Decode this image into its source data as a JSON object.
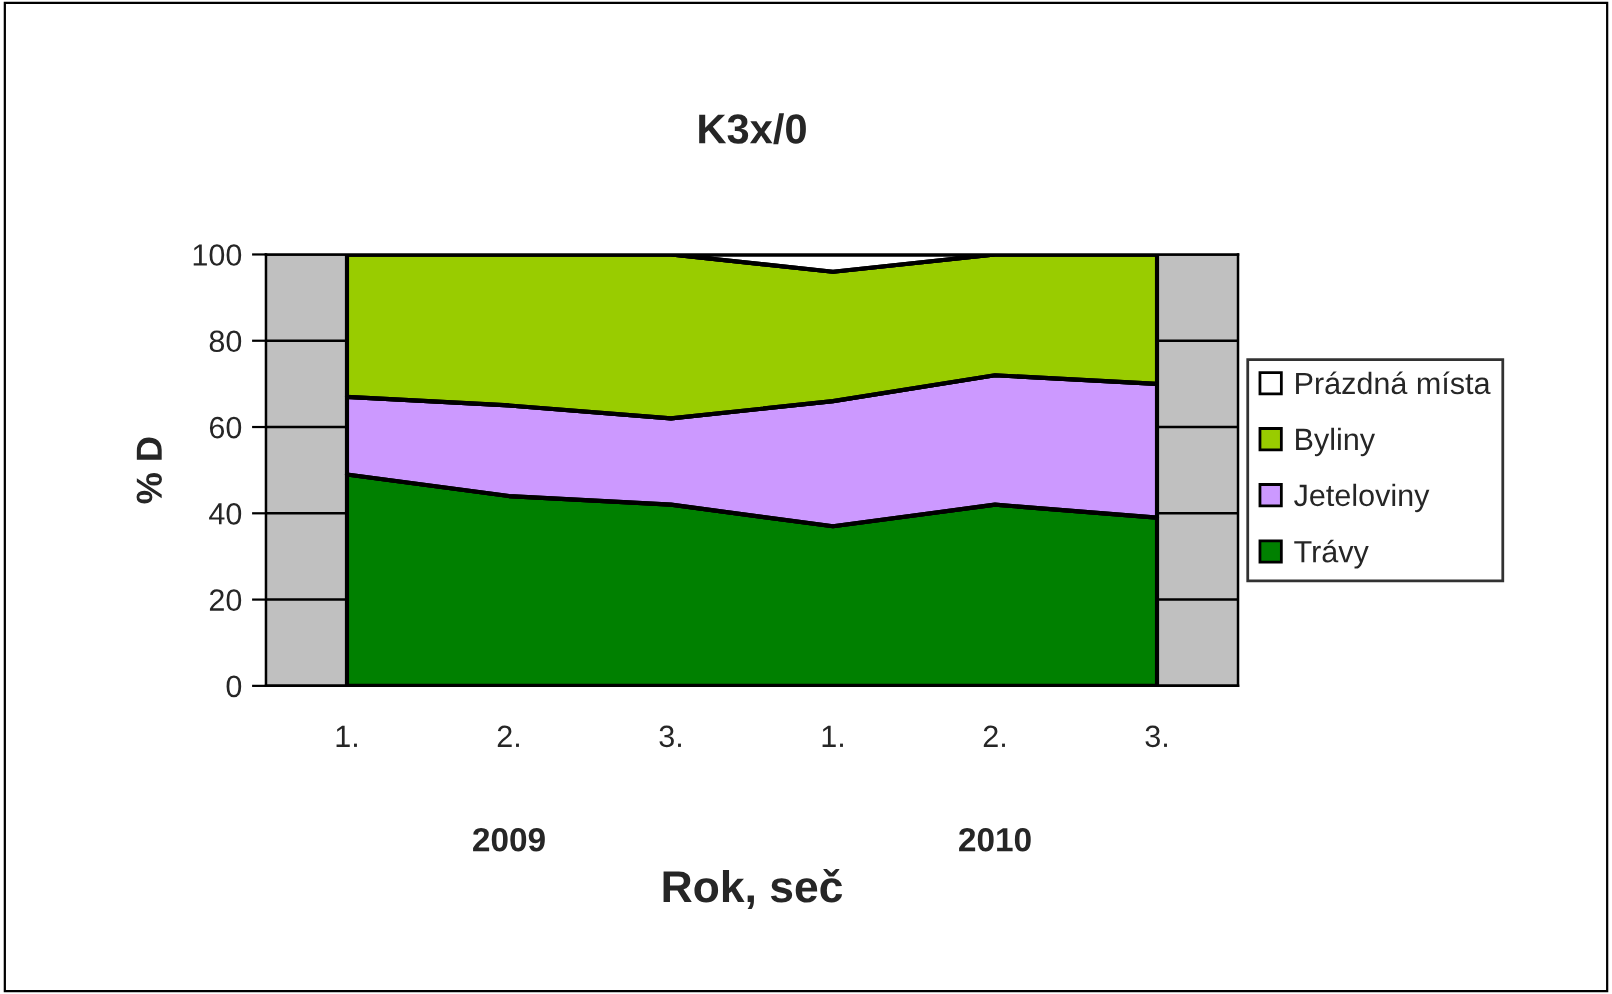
{
  "chart_data": {
    "type": "area",
    "title": "K3x/0",
    "xlabel": "Rok, seč",
    "ylabel": "% D",
    "categories": [
      "1.",
      "2.",
      "3.",
      "1.",
      "2.",
      "3."
    ],
    "stacked": true,
    "series": [
      {
        "name": "Trávy",
        "color": "#008000",
        "values": [
          49,
          44,
          42,
          37,
          42,
          39
        ]
      },
      {
        "name": "Jeteloviny",
        "color": "#cc99ff",
        "values": [
          18,
          21,
          20,
          29,
          30,
          31
        ]
      },
      {
        "name": "Byliny",
        "color": "#99cc00",
        "values": [
          33,
          35,
          38,
          30,
          28,
          30
        ]
      },
      {
        "name": "Prázdná místa",
        "color": "#ffffff",
        "values": [
          0,
          0,
          0,
          4,
          0,
          0
        ]
      }
    ],
    "ylim": [
      0,
      100
    ],
    "yticks": [
      0,
      20,
      40,
      60,
      80,
      100
    ],
    "grid": "y",
    "legend": "right",
    "annotations": [
      "2009",
      "2010"
    ]
  }
}
